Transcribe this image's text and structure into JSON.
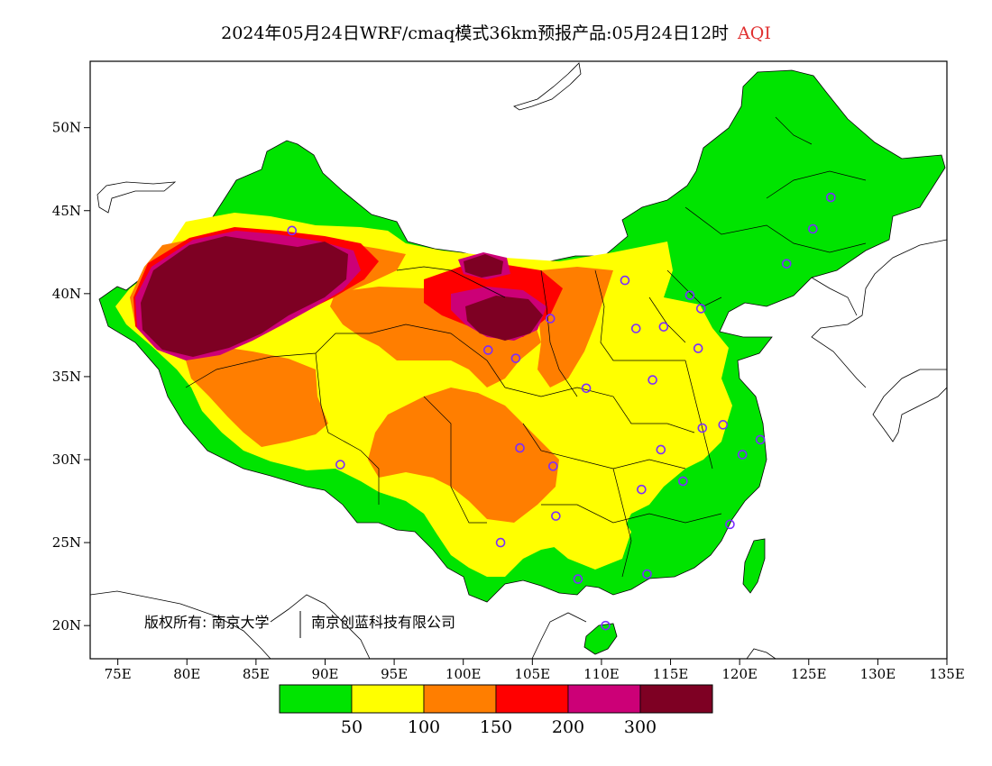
{
  "title": {
    "main": "2024年05月24日WRF/cmaq模式36km预报产品:05月24日12时",
    "variable": "AQI"
  },
  "axes": {
    "lon_labels": [
      "75E",
      "80E",
      "85E",
      "90E",
      "95E",
      "100E",
      "105E",
      "110E",
      "115E",
      "120E",
      "125E",
      "130E",
      "135E"
    ],
    "lat_labels": [
      "20N",
      "25N",
      "30N",
      "35N",
      "40N",
      "45N",
      "50N"
    ]
  },
  "copyright": {
    "part1": "版权所有: 南京大学",
    "part2": "南京创蓝科技有限公司"
  },
  "legend": {
    "colors": [
      "#00e400",
      "#ffff00",
      "#ff7e00",
      "#ff0000",
      "#cc0077",
      "#7e0023"
    ],
    "labels": [
      "50",
      "100",
      "150",
      "200",
      "300"
    ]
  },
  "chart_data": {
    "type": "heatmap",
    "title": "2024年05月24日WRF/cmaq模式36km预报产品:05月24日12时 AQI",
    "xlim": [
      73,
      135
    ],
    "ylim": [
      18,
      54
    ],
    "x_ticks": [
      75,
      80,
      85,
      90,
      95,
      100,
      105,
      110,
      115,
      120,
      125,
      130,
      135
    ],
    "y_ticks": [
      20,
      25,
      30,
      35,
      40,
      45,
      50
    ],
    "levels": [
      50,
      100,
      150,
      200,
      300
    ],
    "colors": [
      "#00e400",
      "#ffff00",
      "#ff7e00",
      "#ff0000",
      "#cc0077",
      "#7e0023"
    ],
    "stations": [
      [
        87.6,
        43.8
      ],
      [
        91.1,
        29.7
      ],
      [
        101.8,
        36.6
      ],
      [
        103.8,
        36.1
      ],
      [
        106.3,
        38.5
      ],
      [
        104.1,
        30.7
      ],
      [
        106.5,
        29.6
      ],
      [
        106.7,
        26.6
      ],
      [
        102.7,
        25.0
      ],
      [
        108.9,
        34.3
      ],
      [
        111.7,
        40.8
      ],
      [
        112.5,
        37.9
      ],
      [
        114.5,
        38.0
      ],
      [
        116.4,
        39.9
      ],
      [
        117.2,
        39.1
      ],
      [
        117.0,
        36.7
      ],
      [
        113.7,
        34.8
      ],
      [
        114.3,
        30.6
      ],
      [
        112.9,
        28.2
      ],
      [
        115.9,
        28.7
      ],
      [
        117.3,
        31.9
      ],
      [
        118.8,
        32.1
      ],
      [
        120.2,
        30.3
      ],
      [
        121.5,
        31.2
      ],
      [
        119.3,
        26.1
      ],
      [
        113.3,
        23.1
      ],
      [
        108.3,
        22.8
      ],
      [
        110.3,
        20.0
      ],
      [
        123.4,
        41.8
      ],
      [
        125.3,
        43.9
      ],
      [
        126.6,
        45.8
      ]
    ]
  }
}
